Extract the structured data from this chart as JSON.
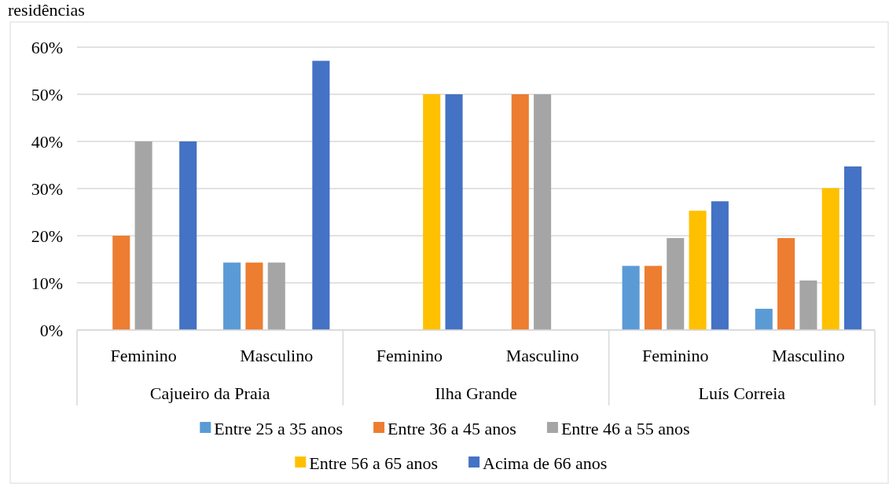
{
  "chart_data": {
    "type": "bar",
    "title": "residências",
    "categories": [
      "Feminino",
      "Masculino",
      "Feminino",
      "Masculino",
      "Feminino",
      "Masculino"
    ],
    "annotations": [
      "Cajueiro da Praia",
      "Ilha Grande",
      "Luís Correia"
    ],
    "series": [
      {
        "name": "Entre 25 a 35 anos",
        "color": "#5b9bd5",
        "values": [
          0,
          14.3,
          0,
          0,
          13.6,
          4.5
        ]
      },
      {
        "name": "Entre 36 a 45 anos",
        "color": "#ed7d31",
        "values": [
          20,
          14.3,
          0,
          50,
          13.6,
          19.5
        ]
      },
      {
        "name": "Entre 46 a 55 anos",
        "color": "#a5a5a5",
        "values": [
          40,
          14.3,
          0,
          50,
          19.5,
          10.5
        ]
      },
      {
        "name": "Entre 56 a 65 anos",
        "color": "#ffc000",
        "values": [
          0,
          0,
          50,
          0,
          25.3,
          30.1
        ]
      },
      {
        "name": "Acima de 66 anos",
        "color": "#4472c4",
        "values": [
          40,
          57.1,
          50,
          0,
          27.3,
          34.7
        ]
      }
    ],
    "ylim": [
      0,
      60
    ],
    "yticks": [
      {
        "value": 0,
        "label": "0%"
      },
      {
        "value": 10,
        "label": "10%"
      },
      {
        "value": 20,
        "label": "20%"
      },
      {
        "value": 30,
        "label": "30%"
      },
      {
        "value": 40,
        "label": "40%"
      },
      {
        "value": 50,
        "label": "50%"
      },
      {
        "value": 60,
        "label": "60%"
      }
    ],
    "grid": "y",
    "legend": "bottom"
  }
}
